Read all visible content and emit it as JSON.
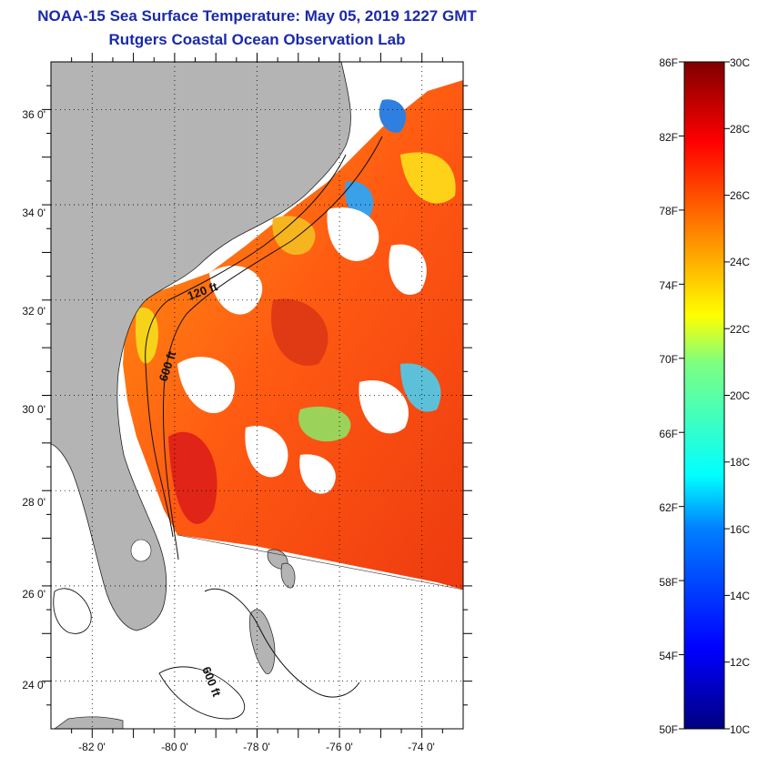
{
  "title": {
    "line1": "NOAA-15 Sea Surface Temperature:  May 05, 2019 1227 GMT",
    "line2": "Rutgers Coastal Ocean Observation Lab"
  },
  "map": {
    "lat_labels": [
      "36 0'",
      "34 0'",
      "32 0'",
      "30 0'",
      "28 0'",
      "26 0'",
      "24 0'"
    ],
    "lon_labels": [
      "-82 0'",
      "-80 0'",
      "-78 0'",
      "-76 0'",
      "-74 0'"
    ],
    "lat_range": [
      23,
      37
    ],
    "lon_range": [
      -83,
      -73
    ],
    "isobath_labels": [
      "120 ft",
      "600 ft",
      "600 ft"
    ],
    "land_color": "#b4b4b4"
  },
  "colorbar": {
    "f_labels": [
      "86F",
      "82F",
      "78F",
      "74F",
      "70F",
      "66F",
      "62F",
      "58F",
      "54F",
      "50F"
    ],
    "c_labels": [
      "30C",
      "28C",
      "26C",
      "24C",
      "22C",
      "20C",
      "18C",
      "16C",
      "14C",
      "12C",
      "10C"
    ],
    "range_c": [
      10,
      30
    ]
  }
}
